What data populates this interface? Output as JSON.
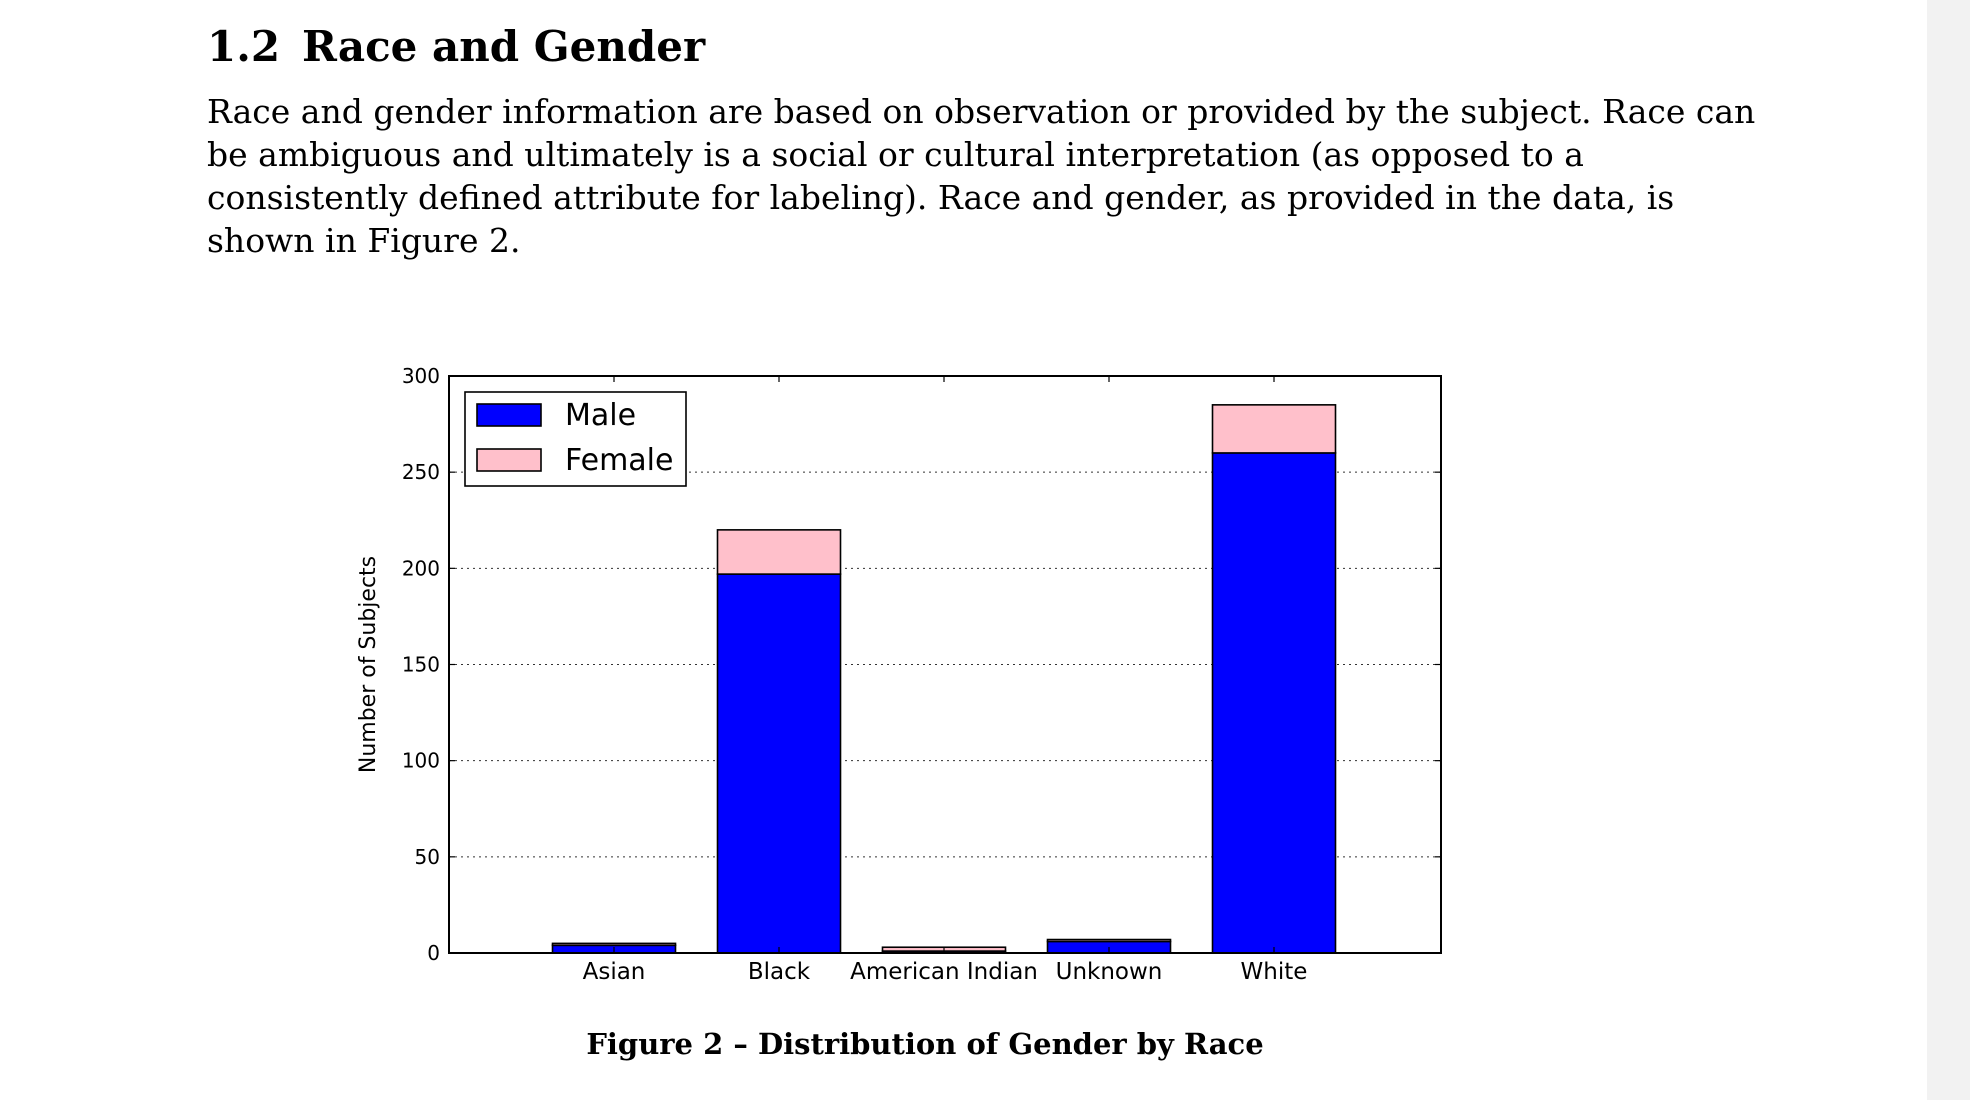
{
  "section": {
    "number": "1.2",
    "title": "Race and Gender"
  },
  "body": {
    "lines": [
      "Race and gender information are based on observation or provided by the subject. Race can",
      "be ambiguous and ultimately is a social or cultural interpretation (as opposed to a",
      "consistently defined attribute for labeling). Race and gender, as provided in the data, is",
      "shown in Figure 2."
    ]
  },
  "figure": {
    "caption": "Figure 2 – Distribution of Gender by Race"
  },
  "chart_data": {
    "type": "bar",
    "stacked": true,
    "categories": [
      "Asian",
      "Black",
      "American Indian",
      "Unknown",
      "White"
    ],
    "series": [
      {
        "name": "Male",
        "values": [
          4,
          197,
          1,
          6,
          260
        ],
        "color": "#0000ff"
      },
      {
        "name": "Female",
        "values": [
          1,
          23,
          2,
          1,
          25
        ],
        "color": "#ffc0cb"
      }
    ],
    "title": "",
    "xlabel": "",
    "ylabel": "Number of Subjects",
    "ylim": [
      0,
      300
    ],
    "yticks": [
      0,
      50,
      100,
      150,
      200,
      250,
      300
    ],
    "grid": true,
    "legend_position": "top-left"
  }
}
